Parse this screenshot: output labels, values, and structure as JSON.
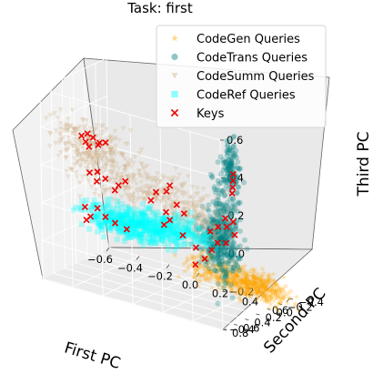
{
  "chart_data": {
    "type": "scatter",
    "title": "Task: first",
    "xlabel": "First PC",
    "ylabel": "Second PC",
    "zlabel": "Third PC",
    "xlim": [
      -0.6,
      0.6
    ],
    "ylim": [
      -0.4,
      0.8
    ],
    "zlim": [
      -0.4,
      0.6
    ],
    "x_ticks": [
      "−0.6",
      "−0.4",
      "−0.2",
      "0.0",
      "0.2",
      "0.4",
      "0.6"
    ],
    "y_ticks": [
      "−0.4",
      "−0.2",
      "0.0",
      "0.2",
      "0.4",
      "0.6",
      "0.8"
    ],
    "z_ticks": [
      "−0.4",
      "−0.2",
      "0.0",
      "0.2",
      "0.4",
      "0.6"
    ],
    "grid": true,
    "legend_position": "top-right",
    "series": [
      {
        "name": "CodeGen Queries",
        "marker": "star",
        "color": "#ffa500",
        "clusters": [
          {
            "center": [
              0.42,
              -0.22,
              -0.34
            ],
            "spread": [
              0.12,
              0.05,
              0.035
            ],
            "count": 500
          },
          {
            "center": [
              0.18,
              -0.12,
              -0.3
            ],
            "spread": [
              0.08,
              0.06,
              0.04
            ],
            "count": 140
          }
        ]
      },
      {
        "name": "CodeTrans Queries",
        "marker": "circle",
        "color": "#008080",
        "clusters": [
          {
            "center": [
              0.47,
              0.4,
              0.02
            ],
            "spread": [
              0.05,
              0.07,
              0.14
            ],
            "count": 300
          },
          {
            "center": [
              0.52,
              0.4,
              0.38
            ],
            "spread": [
              0.02,
              0.05,
              0.07
            ],
            "count": 120
          },
          {
            "center": [
              0.34,
              0.25,
              -0.05
            ],
            "spread": [
              0.06,
              0.06,
              0.06
            ],
            "count": 120
          }
        ]
      },
      {
        "name": "CodeSumm Queries",
        "marker": "triangle",
        "color": "#d2b48c",
        "clusters": [
          {
            "center": [
              -0.35,
              0.55,
              0.32
            ],
            "spread": [
              0.13,
              0.06,
              0.06
            ],
            "count": 260
          },
          {
            "center": [
              -0.12,
              0.25,
              0.12
            ],
            "spread": [
              0.22,
              0.07,
              0.06
            ],
            "count": 320
          },
          {
            "center": [
              0.15,
              0.1,
              -0.02
            ],
            "spread": [
              0.1,
              0.07,
              0.05
            ],
            "count": 120
          }
        ]
      },
      {
        "name": "CodeRef Queries",
        "marker": "square",
        "color": "#00ffff",
        "clusters": [
          {
            "center": [
              -0.32,
              -0.02,
              -0.16
            ],
            "spread": [
              0.14,
              0.04,
              0.04
            ],
            "count": 380
          },
          {
            "center": [
              -0.05,
              -0.08,
              -0.14
            ],
            "spread": [
              0.12,
              0.04,
              0.04
            ],
            "count": 200
          }
        ]
      },
      {
        "name": "Keys",
        "marker": "x",
        "color": "#ee0000",
        "points": [
          [
            -0.42,
            0.55,
            0.36
          ],
          [
            -0.38,
            0.55,
            0.38
          ],
          [
            -0.34,
            0.56,
            0.37
          ],
          [
            -0.3,
            0.55,
            0.35
          ],
          [
            -0.4,
            0.53,
            0.33
          ],
          [
            -0.32,
            0.52,
            0.33
          ],
          [
            -0.26,
            0.55,
            0.36
          ],
          [
            -0.36,
            0.58,
            0.32
          ],
          [
            -0.5,
            0.2,
            0.1
          ],
          [
            -0.44,
            0.22,
            0.12
          ],
          [
            -0.38,
            0.24,
            0.1
          ],
          [
            -0.3,
            0.22,
            0.08
          ],
          [
            -0.24,
            0.26,
            0.12
          ],
          [
            -0.46,
            0.18,
            0.06
          ],
          [
            -0.34,
            0.18,
            0.04
          ],
          [
            -0.05,
            0.22,
            0.1
          ],
          [
            0.02,
            0.22,
            0.12
          ],
          [
            0.08,
            0.2,
            0.06
          ],
          [
            0.12,
            0.18,
            0.02
          ],
          [
            0.0,
            0.18,
            0.0
          ],
          [
            0.05,
            0.24,
            0.16
          ],
          [
            -0.1,
            0.18,
            0.04
          ],
          [
            0.32,
            0.25,
            -0.02
          ],
          [
            0.38,
            0.27,
            0.02
          ],
          [
            0.45,
            0.3,
            0.04
          ],
          [
            0.42,
            0.24,
            -0.06
          ],
          [
            0.5,
            0.32,
            0.08
          ],
          [
            0.47,
            0.38,
            0.1
          ],
          [
            0.35,
            0.2,
            -0.08
          ],
          [
            0.52,
            0.35,
            0.02
          ],
          [
            0.54,
            0.42,
            0.32
          ],
          [
            0.53,
            0.4,
            0.28
          ],
          [
            0.55,
            0.44,
            0.36
          ],
          [
            0.53,
            0.41,
            0.25
          ],
          [
            -0.62,
            -0.03,
            -0.14
          ],
          [
            -0.58,
            -0.02,
            -0.18
          ],
          [
            -0.54,
            -0.04,
            -0.13
          ],
          [
            -0.6,
            0.0,
            -0.2
          ],
          [
            -0.48,
            -0.02,
            -0.16
          ],
          [
            -0.42,
            -0.03,
            -0.18
          ],
          [
            -0.35,
            -0.05,
            -0.2
          ],
          [
            -0.1,
            -0.05,
            -0.12
          ],
          [
            0.02,
            -0.06,
            -0.15
          ],
          [
            0.1,
            -0.08,
            -0.2
          ],
          [
            0.08,
            -0.12,
            -0.3
          ],
          [
            0.15,
            -0.1,
            -0.25
          ],
          [
            -0.05,
            -0.02,
            -0.08
          ],
          [
            0.22,
            -0.04,
            -0.18
          ]
        ]
      }
    ]
  }
}
